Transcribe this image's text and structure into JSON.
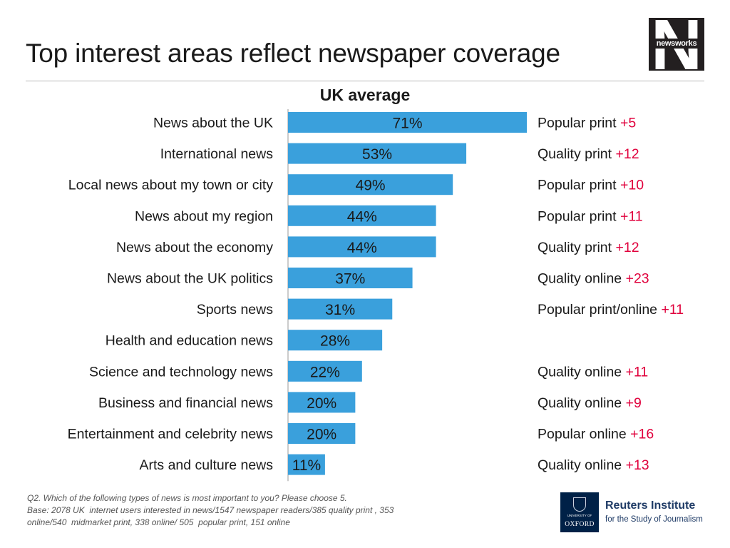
{
  "title": "Top interest areas reflect newspaper coverage",
  "logo": {
    "newsworks": "newsworks"
  },
  "chart_data": {
    "type": "bar",
    "orientation": "horizontal",
    "title": "UK average",
    "categories": [
      "News about the UK",
      "International news",
      "Local news about my town or city",
      "News about my region",
      "News about the economy",
      "News about the UK politics",
      "Sports news",
      "Health and education news",
      "Science and technology news",
      "Business and financial news",
      "Entertainment and celebrity news",
      "Arts and culture news"
    ],
    "values": [
      71,
      53,
      49,
      44,
      44,
      37,
      31,
      28,
      22,
      20,
      20,
      11
    ],
    "value_labels": [
      "71%",
      "53%",
      "49%",
      "44%",
      "44%",
      "37%",
      "31%",
      "28%",
      "22%",
      "20%",
      "20%",
      "11%"
    ],
    "xlim": [
      0,
      71
    ],
    "grid": false,
    "bar_color": "#3aa0dc",
    "annotations": [
      {
        "label": "Popular print",
        "delta": "+5"
      },
      {
        "label": "Quality print",
        "delta": "+12"
      },
      {
        "label": "Popular print",
        "delta": "+10"
      },
      {
        "label": "Popular print",
        "delta": "+11"
      },
      {
        "label": "Quality print",
        "delta": "+12"
      },
      {
        "label": "Quality online",
        "delta": "+23"
      },
      {
        "label": "Popular print/online",
        "delta": "+11"
      },
      {
        "label": "",
        "delta": ""
      },
      {
        "label": "Quality online",
        "delta": "+11"
      },
      {
        "label": "Quality online",
        "delta": "+9"
      },
      {
        "label": "Popular online",
        "delta": "+16"
      },
      {
        "label": "Quality online",
        "delta": "+13"
      }
    ],
    "delta_color": "#e0003c"
  },
  "footnote": {
    "line1": "Q2. Which of the following types of news is most important to you? Please choose 5.",
    "line2": "Base: 2078 UK  internet users interested in news/1547 newspaper readers/385 quality print , 353",
    "line3": "online/540  midmarket print, 338 online/ 505  popular print, 151 online"
  },
  "reuters": {
    "name": "Reuters Institute",
    "sub": "for the Study of Journalism",
    "crest_university": "UNIVERSITY OF",
    "crest_oxford": "OXFORD"
  }
}
